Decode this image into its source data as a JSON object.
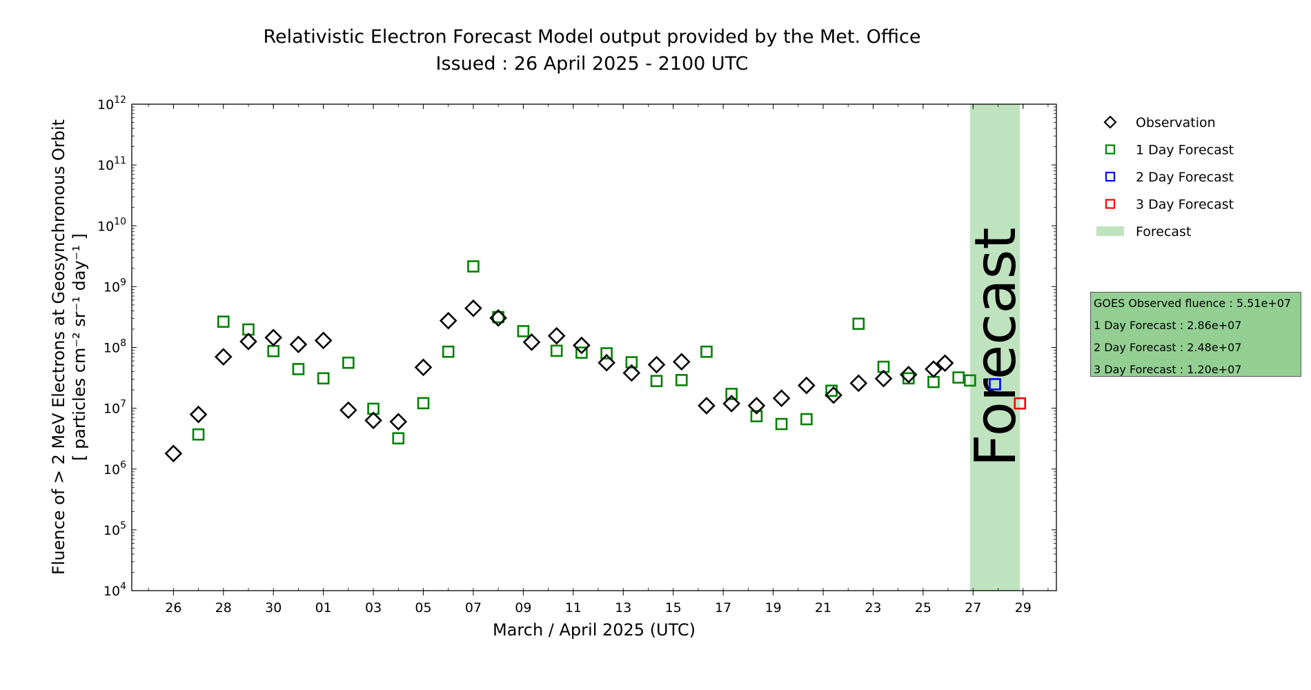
{
  "chart_data": {
    "type": "scatter",
    "title": "Relativistic Electron Forecast Model output provided by the Met. Office",
    "subtitle": "Issued : 26 April 2025 - 2100 UTC",
    "xlabel": "March / April 2025 (UTC)",
    "ylabel_line1": "Fluence of > 2 MeV Electrons at Geosynchronous Orbit",
    "ylabel_line2": "[ particles cm⁻² sr⁻¹ day⁻¹ ]",
    "y_scale": "log",
    "ylim": [
      10000,
      1000000000000
    ],
    "xlim": [
      "2025-03-24T08:00",
      "2025-04-30T08:00"
    ],
    "x_tick_labels": [
      "26",
      "28",
      "30",
      "01",
      "03",
      "05",
      "07",
      "09",
      "11",
      "13",
      "15",
      "17",
      "19",
      "21",
      "23",
      "25",
      "27",
      "29"
    ],
    "x_tick_dates": [
      "2025-03-26",
      "2025-03-28",
      "2025-03-30",
      "2025-04-01",
      "2025-04-03",
      "2025-04-05",
      "2025-04-07",
      "2025-04-09",
      "2025-04-11",
      "2025-04-13",
      "2025-04-15",
      "2025-04-17",
      "2025-04-19",
      "2025-04-21",
      "2025-04-23",
      "2025-04-25",
      "2025-04-27",
      "2025-04-29"
    ],
    "y_tick_labels": [
      {
        "base": "10",
        "exp": "4",
        "value": 10000
      },
      {
        "base": "10",
        "exp": "5",
        "value": 100000
      },
      {
        "base": "10",
        "exp": "6",
        "value": 1000000
      },
      {
        "base": "10",
        "exp": "7",
        "value": 10000000
      },
      {
        "base": "10",
        "exp": "8",
        "value": 100000000
      },
      {
        "base": "10",
        "exp": "9",
        "value": 1000000000
      },
      {
        "base": "10",
        "exp": "10",
        "value": 10000000000
      },
      {
        "base": "10",
        "exp": "11",
        "value": 100000000000
      },
      {
        "base": "10",
        "exp": "12",
        "value": 1000000000000
      }
    ],
    "forecast_region": {
      "label": "Forecast",
      "start": "2025-04-26T21:00",
      "end": "2025-04-28T21:00",
      "color": "#bfe3bf",
      "text_color": "#8aa88a"
    },
    "series": [
      {
        "name": "Observation",
        "marker": "diamond",
        "color": "#000000",
        "points": [
          {
            "x": "2025-03-26",
            "y": 1800000
          },
          {
            "x": "2025-03-27",
            "y": 7900000
          },
          {
            "x": "2025-03-28",
            "y": 70000000
          },
          {
            "x": "2025-03-29",
            "y": 125000000
          },
          {
            "x": "2025-03-30",
            "y": 145000000
          },
          {
            "x": "2025-03-31",
            "y": 112000000
          },
          {
            "x": "2025-04-01",
            "y": 130000000
          },
          {
            "x": "2025-04-02",
            "y": 9300000
          },
          {
            "x": "2025-04-03",
            "y": 6300000
          },
          {
            "x": "2025-04-04",
            "y": 6000000
          },
          {
            "x": "2025-04-05",
            "y": 47000000
          },
          {
            "x": "2025-04-06",
            "y": 275000000
          },
          {
            "x": "2025-04-07",
            "y": 440000000
          },
          {
            "x": "2025-04-08",
            "y": 305000000
          },
          {
            "x": "2025-04-09T08:00",
            "y": 122000000
          },
          {
            "x": "2025-04-10T08:00",
            "y": 155000000
          },
          {
            "x": "2025-04-11T08:00",
            "y": 108000000
          },
          {
            "x": "2025-04-12T08:00",
            "y": 56000000
          },
          {
            "x": "2025-04-13T08:00",
            "y": 38000000
          },
          {
            "x": "2025-04-14T08:00",
            "y": 52000000
          },
          {
            "x": "2025-04-15T08:00",
            "y": 58000000
          },
          {
            "x": "2025-04-16T08:00",
            "y": 11000000
          },
          {
            "x": "2025-04-17T08:00",
            "y": 11900000
          },
          {
            "x": "2025-04-18T08:00",
            "y": 11000000
          },
          {
            "x": "2025-04-19T08:00",
            "y": 14600000
          },
          {
            "x": "2025-04-20T08:00",
            "y": 23700000
          },
          {
            "x": "2025-04-21T10:00",
            "y": 16400000
          },
          {
            "x": "2025-04-22T10:00",
            "y": 25800000
          },
          {
            "x": "2025-04-23T10:00",
            "y": 30700000
          },
          {
            "x": "2025-04-24T10:00",
            "y": 35700000
          },
          {
            "x": "2025-04-25T10:00",
            "y": 44000000
          },
          {
            "x": "2025-04-25T21:00",
            "y": 55100000
          }
        ]
      },
      {
        "name": "1 Day Forecast",
        "marker": "square",
        "color": "#008000",
        "points": [
          {
            "x": "2025-03-27",
            "y": 3700000
          },
          {
            "x": "2025-03-28",
            "y": 265000000
          },
          {
            "x": "2025-03-29",
            "y": 197000000
          },
          {
            "x": "2025-03-30",
            "y": 87000000
          },
          {
            "x": "2025-03-31",
            "y": 44000000
          },
          {
            "x": "2025-04-01",
            "y": 31000000
          },
          {
            "x": "2025-04-02",
            "y": 56000000
          },
          {
            "x": "2025-04-03",
            "y": 9800000
          },
          {
            "x": "2025-04-04",
            "y": 3200000
          },
          {
            "x": "2025-04-05",
            "y": 12100000
          },
          {
            "x": "2025-04-06",
            "y": 85000000
          },
          {
            "x": "2025-04-07",
            "y": 2150000000
          },
          {
            "x": "2025-04-08",
            "y": 315000000
          },
          {
            "x": "2025-04-09",
            "y": 185000000
          },
          {
            "x": "2025-04-10T08:00",
            "y": 88000000
          },
          {
            "x": "2025-04-11T08:00",
            "y": 82000000
          },
          {
            "x": "2025-04-12T08:00",
            "y": 80000000
          },
          {
            "x": "2025-04-13T08:00",
            "y": 57000000
          },
          {
            "x": "2025-04-14T08:00",
            "y": 28000000
          },
          {
            "x": "2025-04-15T08:00",
            "y": 29000000
          },
          {
            "x": "2025-04-16T08:00",
            "y": 85000000
          },
          {
            "x": "2025-04-17T08:00",
            "y": 17200000
          },
          {
            "x": "2025-04-18T08:00",
            "y": 7400000
          },
          {
            "x": "2025-04-19T08:00",
            "y": 5500000
          },
          {
            "x": "2025-04-20T08:00",
            "y": 6600000
          },
          {
            "x": "2025-04-21T08:00",
            "y": 19400000
          },
          {
            "x": "2025-04-22T10:00",
            "y": 245000000
          },
          {
            "x": "2025-04-23T10:00",
            "y": 48000000
          },
          {
            "x": "2025-04-24T10:00",
            "y": 31000000
          },
          {
            "x": "2025-04-25T10:00",
            "y": 27000000
          },
          {
            "x": "2025-04-26T10:00",
            "y": 32000000
          },
          {
            "x": "2025-04-26T21:00",
            "y": 28600000
          }
        ]
      },
      {
        "name": "2 Day Forecast",
        "marker": "square",
        "color": "#0000ff",
        "points": [
          {
            "x": "2025-04-27T21:00",
            "y": 24800000
          }
        ]
      },
      {
        "name": "3 Day Forecast",
        "marker": "square",
        "color": "#ff0000",
        "points": [
          {
            "x": "2025-04-28T21:00",
            "y": 12000000
          }
        ]
      }
    ],
    "legend": {
      "placement": "outside-right",
      "items": [
        {
          "label": "Observation",
          "marker": "diamond",
          "color": "#000000"
        },
        {
          "label": "1 Day Forecast",
          "marker": "square",
          "color": "#008000"
        },
        {
          "label": "2 Day Forecast",
          "marker": "square",
          "color": "#0000ff"
        },
        {
          "label": "3 Day Forecast",
          "marker": "square",
          "color": "#ff0000"
        },
        {
          "label": "Forecast",
          "marker": "patch",
          "color": "#bfe3bf"
        }
      ]
    },
    "info_box": {
      "color": "#93cf93",
      "lines": [
        "GOES Observed fluence : 5.51e+07",
        "1 Day Forecast : 2.86e+07",
        "2 Day Forecast : 2.48e+07",
        "3 Day Forecast : 1.20e+07"
      ]
    }
  }
}
